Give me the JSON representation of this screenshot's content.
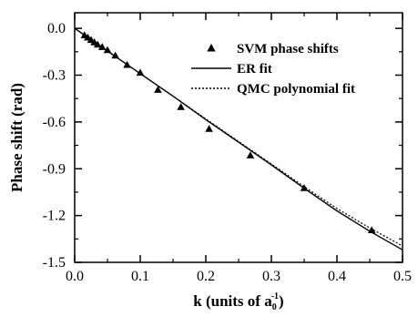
{
  "chart_data": {
    "type": "scatter",
    "xlabel_prefix": "k (units of a",
    "xlabel_sub": "0",
    "xlabel_sup": "-1",
    "xlabel_suffix": ")",
    "ylabel": "Phase shift (rad)",
    "xlim": [
      0.0,
      0.5
    ],
    "ylim": [
      -1.5,
      0.1
    ],
    "x_ticks": [
      "0.0",
      "0.1",
      "0.2",
      "0.3",
      "0.4",
      "0.5"
    ],
    "x_tick_values": [
      0.0,
      0.1,
      0.2,
      0.3,
      0.4,
      0.5
    ],
    "y_ticks": [
      "0.0",
      "-0.3",
      "-0.6",
      "-0.9",
      "-1.2",
      "-1.5"
    ],
    "y_tick_values": [
      0.0,
      -0.3,
      -0.6,
      -0.9,
      -1.2,
      -1.5
    ],
    "grid": false,
    "legend_placement": "top-right",
    "series": [
      {
        "name": "SVM phase shifts",
        "style": "triangle-markers",
        "color": "#000000",
        "x": [
          0.015,
          0.02,
          0.025,
          0.03,
          0.035,
          0.042,
          0.05,
          0.062,
          0.08,
          0.1,
          0.127,
          0.162,
          0.205,
          0.268,
          0.35,
          0.453
        ],
        "y": [
          -0.045,
          -0.06,
          -0.075,
          -0.09,
          -0.105,
          -0.12,
          -0.14,
          -0.175,
          -0.235,
          -0.285,
          -0.395,
          -0.505,
          -0.645,
          -0.815,
          -1.025,
          -1.295
        ]
      },
      {
        "name": "ER fit",
        "style": "solid-line",
        "color": "#000000",
        "x": [
          0.0,
          0.05,
          0.1,
          0.15,
          0.2,
          0.25,
          0.3,
          0.35,
          0.4,
          0.45,
          0.5
        ],
        "y": [
          0.0,
          -0.145,
          -0.29,
          -0.435,
          -0.585,
          -0.73,
          -0.875,
          -1.025,
          -1.17,
          -1.3,
          -1.42
        ]
      },
      {
        "name": "QMC polynomial fit",
        "style": "dotted-line",
        "color": "#000000",
        "x": [
          0.0,
          0.05,
          0.1,
          0.15,
          0.2,
          0.25,
          0.3,
          0.35,
          0.4,
          0.45,
          0.5
        ],
        "y": [
          0.0,
          -0.145,
          -0.29,
          -0.435,
          -0.58,
          -0.725,
          -0.87,
          -1.015,
          -1.155,
          -1.28,
          -1.395
        ]
      }
    ]
  }
}
